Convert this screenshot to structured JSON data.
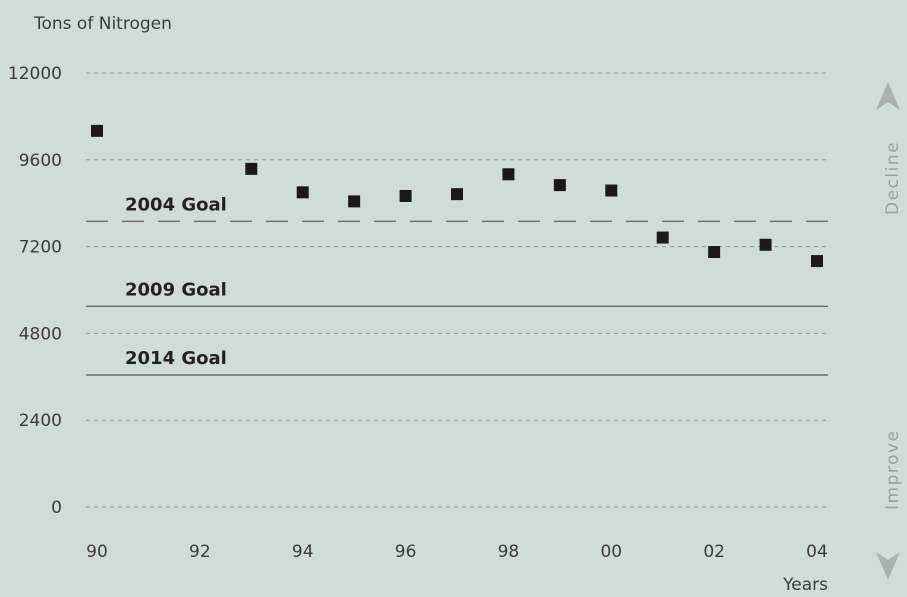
{
  "chart_data": {
    "type": "scatter",
    "ylabel": "Tons of Nitrogen",
    "xlabel": "Years",
    "ylim": [
      0,
      12000
    ],
    "yticks": [
      0,
      2400,
      4800,
      7200,
      9600,
      12000
    ],
    "ytick_labels": [
      "0",
      "2400",
      "4800",
      "7200",
      "9600",
      "12000"
    ],
    "xlim": [
      1990,
      2004
    ],
    "xticks": [
      1990,
      1992,
      1994,
      1996,
      1998,
      2000,
      2002,
      2004
    ],
    "xtick_labels": [
      "90",
      "92",
      "94",
      "96",
      "98",
      "00",
      "02",
      "04"
    ],
    "grid": true,
    "series": [
      {
        "x": [
          1990,
          1993,
          1994,
          1995,
          1996,
          1997,
          1998,
          1999,
          2000,
          2001,
          2002,
          2003,
          2004
        ],
        "y": [
          10400,
          9350,
          8700,
          8450,
          8600,
          8650,
          9200,
          8900,
          8750,
          7450,
          7050,
          7250,
          6800
        ]
      }
    ],
    "goals": [
      {
        "label": "2004 Goal",
        "value": 7900,
        "style": "dashed"
      },
      {
        "label": "2009 Goal",
        "value": 5550,
        "style": "solid"
      },
      {
        "label": "2014 Goal",
        "value": 3650,
        "style": "solid"
      }
    ],
    "annotations": {
      "top": "Decline",
      "bottom": "Improve"
    },
    "colors": {
      "background": "#cfddd8",
      "marker": "#1a1a1a",
      "grid": "#8f9693",
      "goal_line": "#6b6b6b",
      "arrow": "#a9b2ae"
    }
  }
}
